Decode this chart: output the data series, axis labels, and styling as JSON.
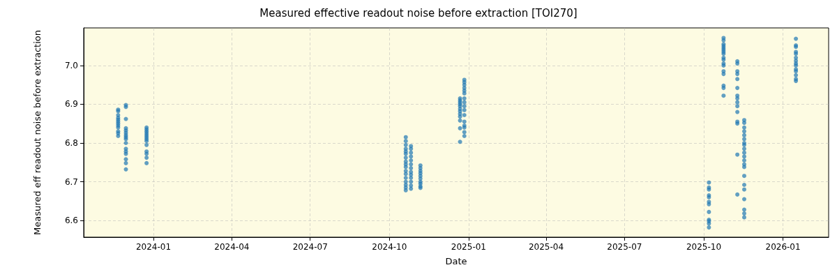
{
  "chart_data": {
    "type": "scatter",
    "title": "Measured effective readout noise before extraction [TOI270]",
    "xlabel": "Date",
    "ylabel": "Measured eff readout noise before extraction",
    "series": [
      {
        "color": "#1f77b4",
        "x": [
          "2023-11-21",
          "2023-11-21",
          "2023-11-21",
          "2023-11-21",
          "2023-11-21",
          "2023-11-21",
          "2023-11-21",
          "2023-11-21",
          "2023-11-21",
          "2023-11-21",
          "2023-11-21",
          "2023-11-21",
          "2023-11-30",
          "2023-11-30",
          "2023-11-30",
          "2023-11-30",
          "2023-11-30",
          "2023-11-30",
          "2023-11-30",
          "2023-11-30",
          "2023-11-30",
          "2023-11-30",
          "2023-11-30",
          "2023-11-30",
          "2023-11-30",
          "2023-11-30",
          "2023-11-30",
          "2023-11-30",
          "2023-12-24",
          "2023-12-24",
          "2023-12-24",
          "2023-12-24",
          "2023-12-24",
          "2023-12-24",
          "2023-12-24",
          "2023-12-24",
          "2023-12-24",
          "2023-12-24",
          "2023-12-24",
          "2023-12-24",
          "2023-12-24",
          "2024-10-20",
          "2024-10-20",
          "2024-10-20",
          "2024-10-20",
          "2024-10-20",
          "2024-10-20",
          "2024-10-20",
          "2024-10-20",
          "2024-10-20",
          "2024-10-20",
          "2024-10-20",
          "2024-10-20",
          "2024-10-20",
          "2024-10-20",
          "2024-10-20",
          "2024-10-20",
          "2024-10-20",
          "2024-10-26",
          "2024-10-26",
          "2024-10-26",
          "2024-10-26",
          "2024-10-26",
          "2024-10-26",
          "2024-10-26",
          "2024-10-26",
          "2024-10-26",
          "2024-10-26",
          "2024-10-26",
          "2024-10-26",
          "2024-10-26",
          "2024-11-06",
          "2024-11-06",
          "2024-11-06",
          "2024-11-06",
          "2024-11-06",
          "2024-11-06",
          "2024-11-06",
          "2024-11-06",
          "2024-11-06",
          "2024-11-06",
          "2024-12-22",
          "2024-12-22",
          "2024-12-22",
          "2024-12-22",
          "2024-12-22",
          "2024-12-22",
          "2024-12-22",
          "2024-12-22",
          "2024-12-22",
          "2024-12-22",
          "2024-12-22",
          "2024-12-22",
          "2024-12-27",
          "2024-12-27",
          "2024-12-27",
          "2024-12-27",
          "2024-12-27",
          "2024-12-27",
          "2024-12-27",
          "2024-12-27",
          "2024-12-27",
          "2024-12-27",
          "2024-12-27",
          "2024-12-27",
          "2024-12-27",
          "2024-12-27",
          "2024-12-27",
          "2024-12-27",
          "2025-10-07",
          "2025-10-07",
          "2025-10-07",
          "2025-10-07",
          "2025-10-07",
          "2025-10-07",
          "2025-10-07",
          "2025-10-07",
          "2025-10-07",
          "2025-10-07",
          "2025-10-07",
          "2025-10-07",
          "2025-10-24",
          "2025-10-24",
          "2025-10-24",
          "2025-10-24",
          "2025-10-24",
          "2025-10-24",
          "2025-10-24",
          "2025-10-24",
          "2025-10-24",
          "2025-10-24",
          "2025-10-24",
          "2025-10-24",
          "2025-10-24",
          "2025-10-24",
          "2025-10-24",
          "2025-10-24",
          "2025-10-24",
          "2025-11-09",
          "2025-11-09",
          "2025-11-09",
          "2025-11-09",
          "2025-11-09",
          "2025-11-09",
          "2025-11-09",
          "2025-11-09",
          "2025-11-09",
          "2025-11-09",
          "2025-11-09",
          "2025-11-09",
          "2025-11-09",
          "2025-11-09",
          "2025-11-09",
          "2025-11-17",
          "2025-11-17",
          "2025-11-17",
          "2025-11-17",
          "2025-11-17",
          "2025-11-17",
          "2025-11-17",
          "2025-11-17",
          "2025-11-17",
          "2025-11-17",
          "2025-11-17",
          "2025-11-17",
          "2025-11-17",
          "2025-11-17",
          "2025-11-17",
          "2025-11-17",
          "2025-11-17",
          "2025-11-17",
          "2025-11-17",
          "2025-11-17",
          "2025-11-17",
          "2026-01-16",
          "2026-01-16",
          "2026-01-16",
          "2026-01-16",
          "2026-01-16",
          "2026-01-16",
          "2026-01-16",
          "2026-01-16",
          "2026-01-16",
          "2026-01-16",
          "2026-01-16",
          "2026-01-16",
          "2026-01-16",
          "2026-01-16"
        ],
        "values": [
          6.886,
          6.882,
          6.872,
          6.865,
          6.86,
          6.855,
          6.85,
          6.845,
          6.84,
          6.83,
          6.825,
          6.818,
          6.898,
          6.893,
          6.862,
          6.838,
          6.832,
          6.826,
          6.82,
          6.815,
          6.81,
          6.8,
          6.785,
          6.778,
          6.772,
          6.758,
          6.748,
          6.732,
          6.84,
          6.835,
          6.83,
          6.825,
          6.82,
          6.815,
          6.81,
          6.805,
          6.795,
          6.778,
          6.772,
          6.762,
          6.748,
          6.815,
          6.805,
          6.795,
          6.785,
          6.778,
          6.772,
          6.762,
          6.752,
          6.745,
          6.738,
          6.728,
          6.72,
          6.71,
          6.7,
          6.692,
          6.685,
          6.678,
          6.792,
          6.785,
          6.775,
          6.765,
          6.755,
          6.745,
          6.735,
          6.725,
          6.718,
          6.71,
          6.7,
          6.69,
          6.682,
          6.742,
          6.735,
          6.728,
          6.722,
          6.715,
          6.708,
          6.7,
          6.695,
          6.688,
          6.684,
          6.915,
          6.91,
          6.905,
          6.9,
          6.895,
          6.888,
          6.882,
          6.875,
          6.868,
          6.858,
          6.838,
          6.803,
          6.963,
          6.957,
          6.95,
          6.942,
          6.935,
          6.928,
          6.915,
          6.905,
          6.895,
          6.885,
          6.872,
          6.855,
          6.845,
          6.84,
          6.828,
          6.818,
          6.698,
          6.685,
          6.68,
          6.665,
          6.66,
          6.648,
          6.642,
          6.622,
          6.602,
          6.598,
          6.592,
          6.582,
          7.071,
          7.065,
          7.055,
          7.05,
          7.045,
          7.04,
          7.035,
          7.03,
          7.02,
          7.015,
          7.005,
          7.0,
          6.985,
          6.978,
          6.948,
          6.942,
          6.922,
          7.011,
          7.005,
          6.985,
          6.978,
          6.965,
          6.942,
          6.922,
          6.915,
          6.905,
          6.895,
          6.88,
          6.855,
          6.85,
          6.77,
          6.667,
          6.859,
          6.852,
          6.84,
          6.83,
          6.82,
          6.81,
          6.8,
          6.795,
          6.785,
          6.775,
          6.765,
          6.755,
          6.745,
          6.738,
          6.715,
          6.692,
          6.68,
          6.655,
          6.628,
          6.618,
          6.608,
          7.069,
          7.052,
          7.048,
          7.035,
          7.03,
          7.02,
          7.012,
          7.005,
          7.0,
          6.99,
          6.985,
          6.975,
          6.965,
          6.96
        ]
      }
    ],
    "xlim": [
      "2023-10-12",
      "2026-02-23"
    ],
    "xticks": [
      "2024-01",
      "2024-04",
      "2024-07",
      "2024-10",
      "2025-01",
      "2025-04",
      "2025-07",
      "2025-10",
      "2026-01"
    ],
    "ylim": [
      6.557,
      7.097
    ],
    "yticks": [
      {
        "value": 6.6,
        "label": "6.6"
      },
      {
        "value": 6.7,
        "label": "6.7"
      },
      {
        "value": 6.8,
        "label": "6.8"
      },
      {
        "value": 6.9,
        "label": "6.9"
      },
      {
        "value": 7.0,
        "label": "7.0"
      }
    ],
    "grid": true,
    "marker": "circle"
  }
}
